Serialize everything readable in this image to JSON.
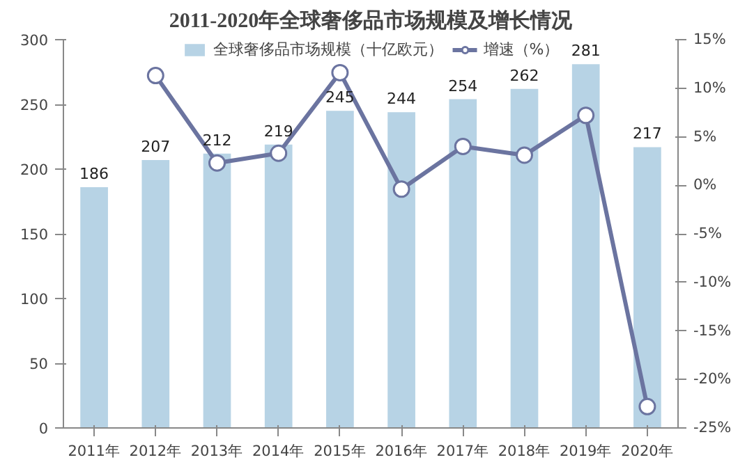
{
  "chart_data": {
    "type": "bar",
    "title": "2011-2020年全球奢侈品市场规模及增长情况",
    "categories": [
      "2011年",
      "2012年",
      "2013年",
      "2014年",
      "2015年",
      "2016年",
      "2017年",
      "2018年",
      "2019年",
      "2020年"
    ],
    "series": [
      {
        "name": "全球奢侈品市场规模（十亿欧元）",
        "color": "#b7d3e5",
        "values": [
          186,
          207,
          212,
          219,
          245,
          244,
          254,
          262,
          281,
          217
        ],
        "data_labels": true
      },
      {
        "name": "增速（%）",
        "type": "line",
        "axis": "y2",
        "color": "#6b74a0",
        "marker": "circle",
        "values": [
          null,
          11.3,
          2.3,
          3.3,
          11.6,
          -0.4,
          4.0,
          3.1,
          7.2,
          -22.8
        ]
      }
    ],
    "ylim": [
      0,
      300
    ],
    "yticks": [
      0,
      50,
      100,
      150,
      200,
      250,
      300
    ],
    "y2lim": [
      -25,
      15
    ],
    "y2ticks": [
      {
        "value": -25,
        "label": "-25%"
      },
      {
        "value": -20,
        "label": "-20%"
      },
      {
        "value": -15,
        "label": "-15%"
      },
      {
        "value": -10,
        "label": "-10%"
      },
      {
        "value": -5,
        "label": "-5%"
      },
      {
        "value": 0,
        "label": "0%"
      },
      {
        "value": 5,
        "label": "5%"
      },
      {
        "value": 10,
        "label": "10%"
      },
      {
        "value": 15,
        "label": "15%"
      }
    ],
    "grid": false,
    "legend": "top"
  }
}
